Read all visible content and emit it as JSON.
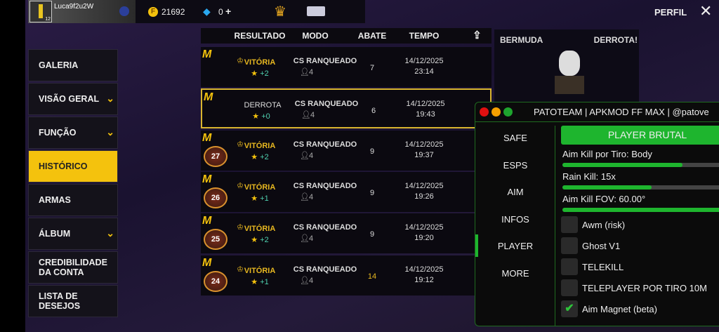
{
  "topbar": {
    "username": "Luca9f2u2W",
    "level": "12",
    "coins": "21692",
    "diamonds": "0",
    "plus": "+",
    "profile_label": "PERFIL"
  },
  "sidebar": {
    "items": [
      {
        "label": "GALERIA",
        "chevron": false
      },
      {
        "label": "VISÃO GERAL",
        "chevron": true
      },
      {
        "label": "FUNÇÃO",
        "chevron": true
      },
      {
        "label": "HISTÓRICO",
        "chevron": false,
        "active": true
      },
      {
        "label": "ARMAS",
        "chevron": false
      },
      {
        "label": "ÁLBUM",
        "chevron": true
      },
      {
        "label": "CREDIBILIDADE DA CONTA",
        "chevron": false
      },
      {
        "label": "LISTA DE DESEJOS",
        "chevron": false
      }
    ]
  },
  "history": {
    "columns": [
      "RESULTADO",
      "MODO",
      "ABATE",
      "TEMPO"
    ],
    "rows": [
      {
        "result": "VITÓRIA",
        "stars": "+2",
        "mode": "CS RANQUEADO",
        "players": "4",
        "kills": "7",
        "date": "14/12/2025",
        "time": "23:14",
        "badge": ""
      },
      {
        "result": "DERROTA",
        "stars": "+0",
        "mode": "CS RANQUEADO",
        "players": "4",
        "kills": "6",
        "date": "14/12/2025",
        "time": "19:43",
        "badge": ""
      },
      {
        "result": "VITÓRIA",
        "stars": "+2",
        "mode": "CS RANQUEADO",
        "players": "4",
        "kills": "9",
        "date": "14/12/2025",
        "time": "19:37",
        "badge": "27"
      },
      {
        "result": "VITÓRIA",
        "stars": "+1",
        "mode": "CS RANQUEADO",
        "players": "4",
        "kills": "9",
        "date": "14/12/2025",
        "time": "19:26",
        "badge": "26"
      },
      {
        "result": "VITÓRIA",
        "stars": "+2",
        "mode": "CS RANQUEADO",
        "players": "4",
        "kills": "9",
        "date": "14/12/2025",
        "time": "19:20",
        "badge": "25"
      },
      {
        "result": "VITÓRIA",
        "stars": "+1",
        "mode": "CS RANQUEADO",
        "players": "4",
        "kills": "14",
        "date": "14/12/2025",
        "time": "19:12",
        "badge": "24"
      }
    ]
  },
  "detail": {
    "map": "BERMUDA",
    "result": "DERROTA!"
  },
  "mod_menu": {
    "title": "PATOTEAM | APKMOD FF MAX | @patove",
    "nav": [
      "SAFE",
      "ESPS",
      "AIM",
      "INFOS",
      "PLAYER",
      "MORE"
    ],
    "active_nav": "PLAYER",
    "header_button": "PLAYER BRUTAL",
    "sliders": [
      {
        "label": "Aim Kill por Tiro:  Body",
        "fill": 0.7
      },
      {
        "label": "Rain Kill: 15x",
        "fill": 0.52
      },
      {
        "label": "Aim Kill FOV: 60.00°",
        "fill": 0.94
      }
    ],
    "toggles": [
      {
        "label": "Awm (risk)",
        "checked": false
      },
      {
        "label": "Ghost V1",
        "checked": false
      },
      {
        "label": "TELEKILL",
        "checked": false
      },
      {
        "label": "TELEPLAYER POR TIRO 10M",
        "checked": false
      },
      {
        "label": "Aim Magnet (beta)",
        "checked": true
      }
    ],
    "colors": {
      "accent": "#1eb52e",
      "close": "#e01010",
      "minimize": "#f5a000",
      "maximize": "#1ea52e"
    }
  }
}
